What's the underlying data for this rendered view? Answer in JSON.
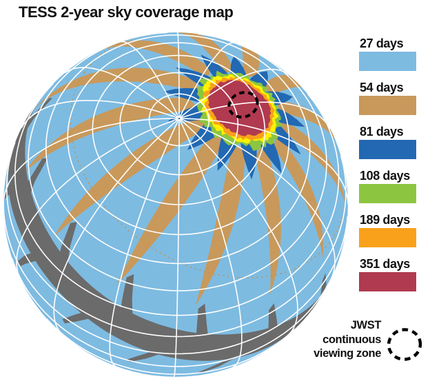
{
  "title": "TESS 2-year sky coverage map",
  "legend": {
    "items": [
      {
        "label": "27 days",
        "color": "#7EBBE1"
      },
      {
        "label": "54 days",
        "color": "#C8995B"
      },
      {
        "label": "81 days",
        "color": "#2268B2"
      },
      {
        "label": "108 days",
        "color": "#8CC640"
      },
      {
        "label": "189 days",
        "color": "#F9A11B"
      },
      {
        "label": "351 days",
        "color": "#B03A50"
      }
    ],
    "jwst_lines": [
      "JWST",
      "continuous",
      "viewing zone"
    ]
  },
  "globe": {
    "base_color": "#7EBBE1",
    "overlap2_color": "#C8995B",
    "overlap3_color": "#2268B2",
    "ring_green": "#8CC640",
    "ring_yellow": "#FFF100",
    "ring_orange": "#F9A11B",
    "core_crimson": "#B03A50",
    "unobserved_gray": "#6B6B6B",
    "grid_color": "#FFFFFF",
    "sector_boundary_dash_color": "#C2914F",
    "jwst_marker_color": "#000000"
  },
  "chart_data": {
    "type": "heatmap",
    "title": "TESS 2-year sky coverage map",
    "legend_position": "right",
    "categories": [
      "27 days",
      "54 days",
      "81 days",
      "108 days",
      "189 days",
      "351 days"
    ],
    "values": [
      27,
      54,
      81,
      108,
      189,
      351
    ],
    "colors": [
      "#7EBBE1",
      "#C8995B",
      "#2268B2",
      "#8CC640",
      "#F9A11B",
      "#B03A50"
    ],
    "annotations": [
      "JWST continuous viewing zone"
    ]
  }
}
